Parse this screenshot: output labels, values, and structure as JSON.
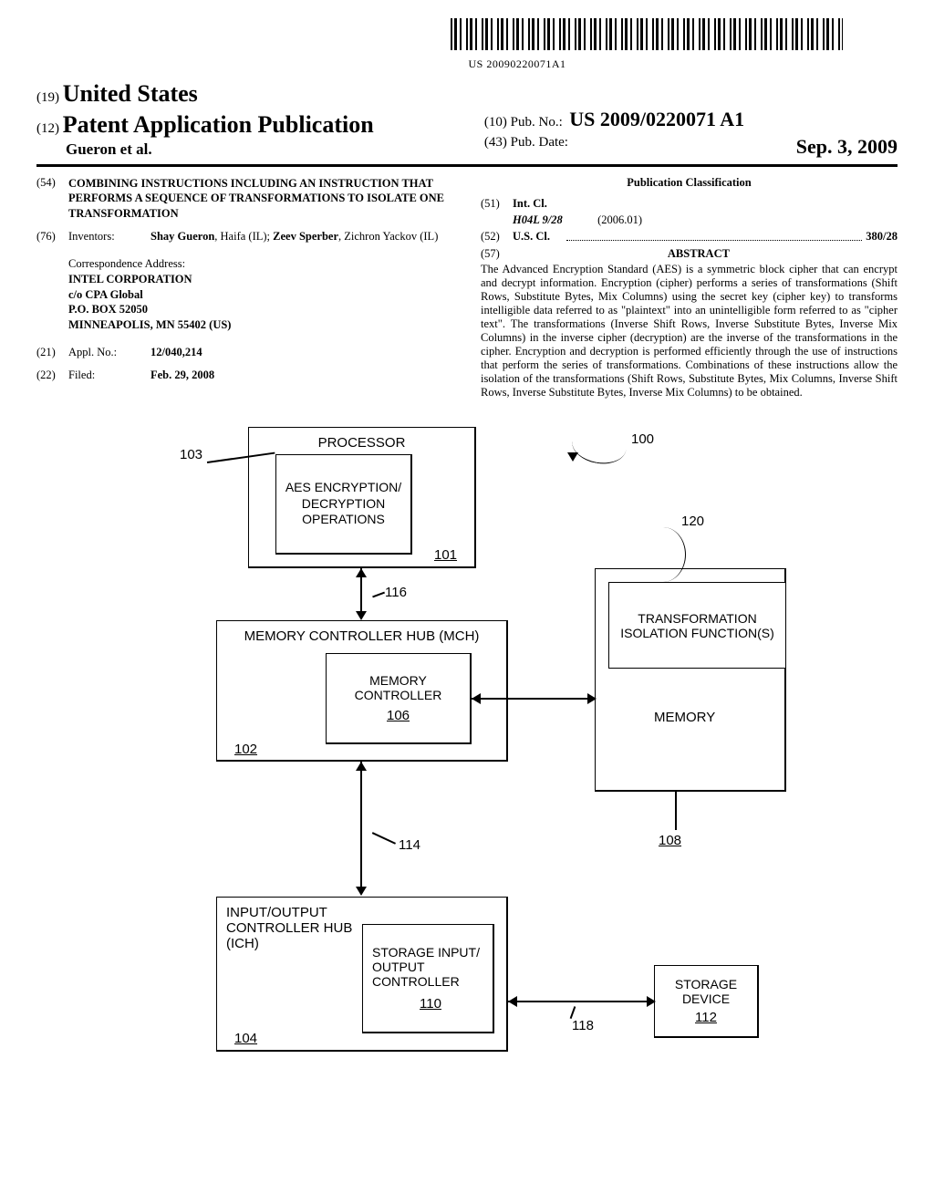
{
  "barcode_number": "US 20090220071A1",
  "header": {
    "country_num": "(19)",
    "country": "United States",
    "pub_type_num": "(12)",
    "pub_type": "Patent Application Publication",
    "authors": "Gueron et al.",
    "pub_no_num": "(10)",
    "pub_no_label": "Pub. No.:",
    "pub_no": "US 2009/0220071 A1",
    "pub_date_num": "(43)",
    "pub_date_label": "Pub. Date:",
    "pub_date": "Sep. 3, 2009"
  },
  "left": {
    "title_num": "(54)",
    "title": "COMBINING INSTRUCTIONS INCLUDING AN INSTRUCTION THAT PERFORMS A SEQUENCE OF TRANSFORMATIONS TO ISOLATE ONE TRANSFORMATION",
    "inventors_num": "(76)",
    "inventors_label": "Inventors:",
    "inventors_html": "<span class='name'>Shay Gueron</span>, Haifa (IL); <span class='name'>Zeev Sperber</span>, Zichron Yackov (IL)",
    "corr_label": "Correspondence Address:",
    "corr_1": "INTEL CORPORATION",
    "corr_2": "c/o CPA Global",
    "corr_3": "P.O. BOX 52050",
    "corr_4": "MINNEAPOLIS, MN 55402 (US)",
    "appl_num": "(21)",
    "appl_label": "Appl. No.:",
    "appl_val": "12/040,214",
    "filed_num": "(22)",
    "filed_label": "Filed:",
    "filed_val": "Feb. 29, 2008"
  },
  "right": {
    "pub_class_head": "Publication Classification",
    "intcl_num": "(51)",
    "intcl_label": "Int. Cl.",
    "intcl_cls": "H04L 9/28",
    "intcl_date": "(2006.01)",
    "uscl_num": "(52)",
    "uscl_label": "U.S. Cl.",
    "uscl_val": "380/28",
    "abstract_num": "(57)",
    "abstract_head": "ABSTRACT",
    "abstract_body": "The Advanced Encryption Standard (AES) is a symmetric block cipher that can encrypt and decrypt information. Encryption (cipher) performs a series of transformations (Shift Rows, Substitute Bytes, Mix Columns) using the secret key (cipher key) to transforms intelligible data referred to as \"plaintext\" into an unintelligible form referred to as \"cipher text\". The transformations (Inverse Shift Rows, Inverse Substitute Bytes, Inverse Mix Columns) in the inverse cipher (decryption) are the inverse of the transformations in the cipher. Encryption and decryption is performed efficiently through the use of instructions that perform the series of transformations. Combinations of these instructions allow the isolation of the transformations (Shift Rows, Substitute Bytes, Mix Columns, Inverse Shift Rows, Inverse Substitute Bytes, Inverse Mix Columns) to be obtained."
  },
  "diagram": {
    "ref_100": "100",
    "ref_103": "103",
    "ref_101": "101",
    "ref_116": "116",
    "ref_120": "120",
    "ref_106": "106",
    "ref_102": "102",
    "ref_114": "114",
    "ref_108": "108",
    "ref_110": "110",
    "ref_104": "104",
    "ref_118": "118",
    "ref_112": "112",
    "processor": "PROCESSOR",
    "aes": "AES ENCRYPTION/ DECRYPTION OPERATIONS",
    "mch": "MEMORY CONTROLLER HUB (MCH)",
    "memctrl": "MEMORY CONTROLLER",
    "transform": "TRANSFORMATION ISOLATION FUNCTION(S)",
    "memory": "MEMORY",
    "ich": "INPUT/OUTPUT CONTROLLER HUB (ICH)",
    "storage_io": "STORAGE INPUT/ OUTPUT CONTROLLER",
    "storage_dev": "STORAGE DEVICE"
  },
  "style": {
    "page_bg": "#ffffff",
    "text_color": "#000000",
    "font_serif": "Times New Roman",
    "font_sans": "Arial",
    "line_color": "#000000",
    "box_border_width": 1.5,
    "box_shadow_width": 2.5
  }
}
